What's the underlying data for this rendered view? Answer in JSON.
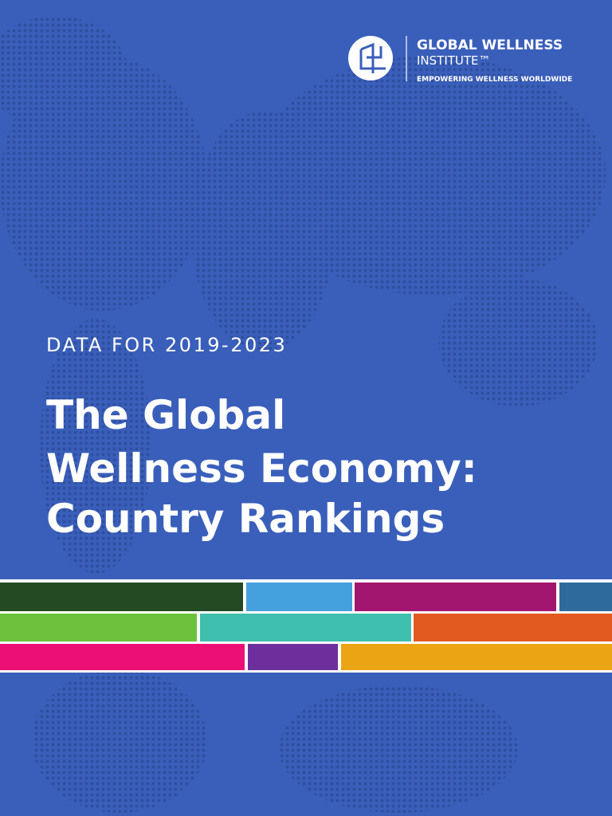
{
  "logo": {
    "name_line1": "GLOBAL WELLNESS",
    "name_line2": "INSTITUTE™",
    "tagline": "EMPOWERING WELLNESS WORLDWIDE"
  },
  "subtitle": "DATA FOR 2019-2023",
  "title": {
    "lines": [
      "The Global",
      "Wellness Economy:",
      "Country Rankings"
    ]
  }
}
